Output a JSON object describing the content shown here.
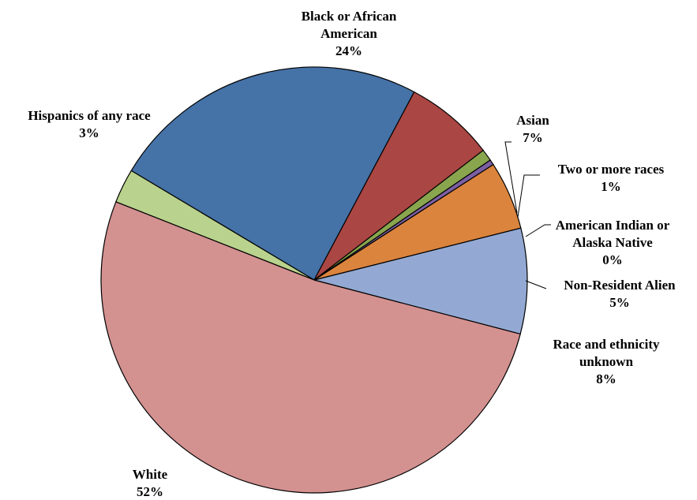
{
  "chart_data": {
    "type": "pie",
    "title": "",
    "start_angle_deg": 62,
    "direction": "counterclockwise",
    "slices": [
      {
        "name": "Black or African American",
        "label_lines": [
          "Black or African",
          "American"
        ],
        "value_label": "24%",
        "value": 24.2,
        "color": "#4572a7"
      },
      {
        "name": "Hispanics of any race",
        "label_lines": [
          "Hispanics of any race"
        ],
        "value_label": "3%",
        "value": 2.6,
        "color": "#b9d28d"
      },
      {
        "name": "White",
        "label_lines": [
          "White"
        ],
        "value_label": "52%",
        "value": 51.9,
        "color": "#d39190"
      },
      {
        "name": "Race and ethnicity unknown",
        "label_lines": [
          "Race and ethnicity",
          "unknown"
        ],
        "value_label": "8%",
        "value": 8.0,
        "color": "#93a9d3"
      },
      {
        "name": "Non-Resident Alien",
        "label_lines": [
          "Non-Resident Alien"
        ],
        "value_label": "5%",
        "value": 5.2,
        "color": "#db843d"
      },
      {
        "name": "American Indian or Alaska Native",
        "label_lines": [
          "American Indian or",
          "Alaska Native"
        ],
        "value_label": "0%",
        "value": 0.4,
        "color": "#7c5fa2"
      },
      {
        "name": "Two or more races",
        "label_lines": [
          "Two or more races"
        ],
        "value_label": "1%",
        "value": 0.9,
        "color": "#89a54e"
      },
      {
        "name": "Asian",
        "label_lines": [
          "Asian"
        ],
        "value_label": "7%",
        "value": 6.8,
        "color": "#aa4643"
      }
    ]
  }
}
